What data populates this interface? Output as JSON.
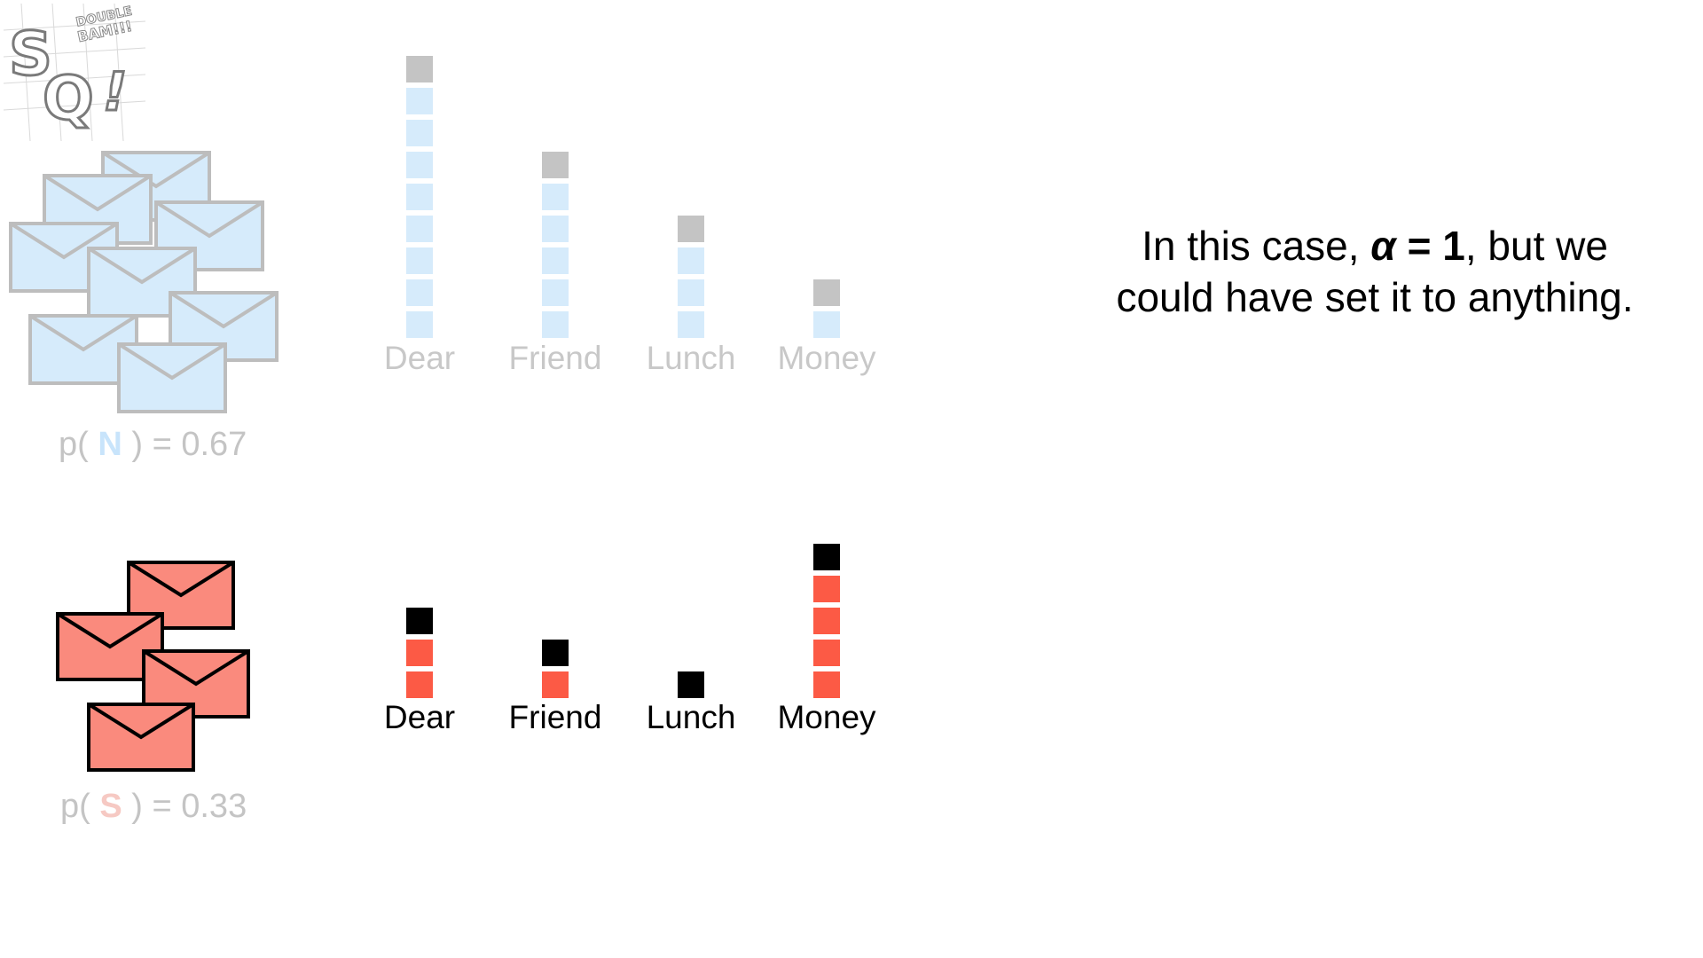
{
  "logo": {
    "main": "SQ!",
    "badge_line1": "DOUBLE",
    "badge_line2": "BAM!!!"
  },
  "normal": {
    "class_letter": "N",
    "prior_prefix": "p( ",
    "prior_suffix": " ) = 0.67",
    "class_color": "#c8e4fb",
    "envelope_fill": "#d6ebfb",
    "envelope_stroke": "#bdbdbd"
  },
  "spam": {
    "class_letter": "S",
    "prior_prefix": "p( ",
    "prior_suffix": " ) = 0.33",
    "class_color": "#f6c9c3",
    "envelope_fill": "#fa8a7d",
    "envelope_stroke": "#000000"
  },
  "explanation": {
    "line1_pre": "In this case, ",
    "alpha_symbol": "α",
    "equals": " = 1",
    "line1_post": ", but we",
    "line2": "could have set it to anything."
  },
  "chart_data": [
    {
      "type": "bar",
      "categories": [
        "Dear",
        "Friend",
        "Lunch",
        "Money"
      ],
      "series": [
        {
          "values": [
            8,
            5,
            3,
            1
          ]
        },
        {
          "values": [
            1,
            1,
            1,
            1
          ]
        }
      ],
      "colors": {
        "count": "#d6ebfb",
        "alpha": "#c4c4c4",
        "label": "#c8c8c8"
      }
    },
    {
      "type": "bar",
      "categories": [
        "Dear",
        "Friend",
        "Lunch",
        "Money"
      ],
      "series": [
        {
          "values": [
            2,
            1,
            0,
            4
          ]
        },
        {
          "values": [
            1,
            1,
            1,
            1
          ]
        }
      ],
      "colors": {
        "count": "#fc5a45",
        "alpha": "#000000",
        "label": "#000000"
      }
    }
  ]
}
